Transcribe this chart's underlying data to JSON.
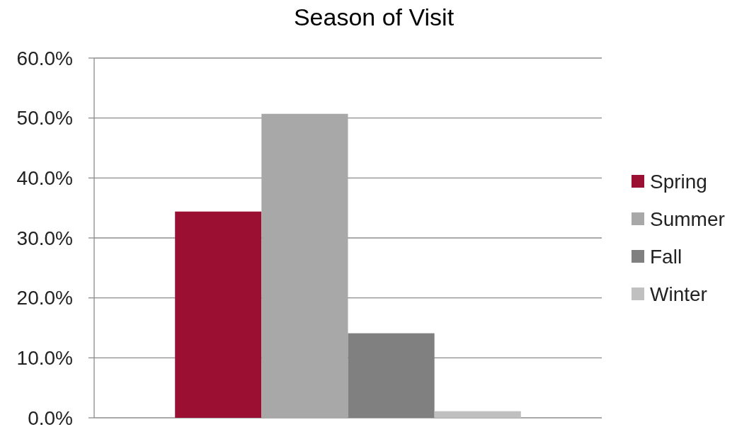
{
  "chart_data": {
    "type": "bar",
    "title": "Season of Visit",
    "categories": [
      null
    ],
    "series": [
      {
        "name": "Spring",
        "color": "#9b0f33",
        "values": [
          34.4
        ]
      },
      {
        "name": "Summer",
        "color": "#a8a8a8",
        "values": [
          50.7
        ]
      },
      {
        "name": "Fall",
        "color": "#808080",
        "values": [
          14.1
        ]
      },
      {
        "name": "Winter",
        "color": "#c0c0c0",
        "values": [
          1.1
        ]
      }
    ],
    "ylim": [
      0,
      60
    ],
    "yticks": [
      {
        "value": 0,
        "label": "0.0%"
      },
      {
        "value": 10,
        "label": "10.0%"
      },
      {
        "value": 20,
        "label": "20.0%"
      },
      {
        "value": 30,
        "label": "30.0%"
      },
      {
        "value": 40,
        "label": "40.0%"
      },
      {
        "value": 50,
        "label": "50.0%"
      },
      {
        "value": 60,
        "label": "60.0%"
      }
    ],
    "grid": "y",
    "legend": "right"
  }
}
